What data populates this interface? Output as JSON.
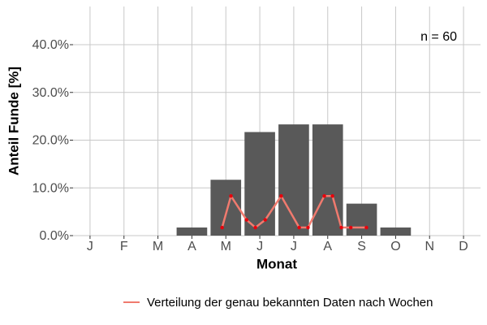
{
  "chart_data": {
    "type": "bar",
    "annotation": "n = 60",
    "xlabel": "Monat",
    "ylabel": "Anteil Funde [%]",
    "categories": [
      "J",
      "F",
      "M",
      "A",
      "M",
      "J",
      "J",
      "A",
      "S",
      "O",
      "N",
      "D"
    ],
    "values": [
      0,
      0,
      0,
      1.7,
      11.7,
      21.7,
      23.3,
      23.3,
      6.7,
      1.7,
      0,
      0
    ],
    "color": "#595959",
    "ylim": [
      0,
      48
    ],
    "yticks": [
      {
        "value": 0,
        "label": "0.0%"
      },
      {
        "value": 10,
        "label": "10.0%"
      },
      {
        "value": 20,
        "label": "20.0%"
      },
      {
        "value": 30,
        "label": "30.0%"
      },
      {
        "value": 40,
        "label": "40.0%"
      }
    ],
    "grid": true,
    "legend": "bottom",
    "overlay": {
      "type": "line",
      "name": "Verteilung der genau bekannten Daten nach Wochen",
      "color": "#f07a6e",
      "point_color": "#e8000b",
      "xlim": [
        0.5,
        12.5
      ],
      "x": [
        4.89,
        5.15,
        5.61,
        5.87,
        6.16,
        6.63,
        7.16,
        7.42,
        7.9,
        8.14,
        8.4,
        8.68,
        9.14
      ],
      "values": [
        1.7,
        8.3,
        3.3,
        1.7,
        3.3,
        8.3,
        1.7,
        1.7,
        8.3,
        8.3,
        1.7,
        1.7,
        1.7
      ]
    }
  }
}
